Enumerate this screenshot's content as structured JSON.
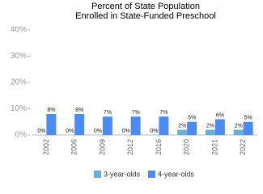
{
  "chart_data": {
    "type": "bar",
    "title": [
      "Percent of State Population",
      "Enrolled in State-Funded Preschool"
    ],
    "categories": [
      "2002",
      "2006",
      "2009",
      "2012",
      "2016",
      "2020",
      "2021",
      "2022"
    ],
    "series": [
      {
        "name": "3-year-olds",
        "color": "#62b2d9",
        "values": [
          0,
          0,
          0,
          0,
          0,
          2,
          2,
          2
        ],
        "value_labels": [
          "0%",
          "0%",
          "0%",
          "0%",
          "0%",
          "2%",
          "2%",
          "2%"
        ]
      },
      {
        "name": "4-year-olds",
        "color": "#4a8bf5",
        "values": [
          8,
          8,
          7,
          7,
          7,
          5,
          6,
          5
        ],
        "value_labels": [
          "8%",
          "8%",
          "7%",
          "7%",
          "7%",
          "5%",
          "6%",
          "5%"
        ]
      }
    ],
    "ylim": [
      0,
      40
    ],
    "yticks": [
      {
        "value": 0,
        "label": "0%"
      },
      {
        "value": 10,
        "label": "10%"
      },
      {
        "value": 20,
        "label": "20%"
      },
      {
        "value": 30,
        "label": "30%"
      },
      {
        "value": 40,
        "label": "40%"
      }
    ],
    "legend": "bottom"
  }
}
